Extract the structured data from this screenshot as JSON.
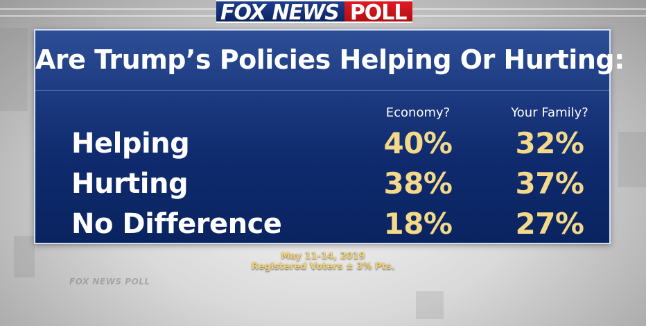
{
  "logo": {
    "brand": "FOX NEWS",
    "label": "POLL"
  },
  "watermark": {
    "small_logo": "FOX NEWS POLL"
  },
  "chart_data": {
    "type": "table",
    "title": "Are Trump’s Policies Helping Or Hurting:",
    "columns": [
      "Economy?",
      "Your Family?"
    ],
    "rows": [
      {
        "label": "Helping",
        "values": [
          "40%",
          "32%"
        ]
      },
      {
        "label": "Hurting",
        "values": [
          "38%",
          "37%"
        ]
      },
      {
        "label": "No Difference",
        "values": [
          "18%",
          "27%"
        ]
      }
    ],
    "values_numeric": [
      [
        40,
        32
      ],
      [
        38,
        37
      ],
      [
        18,
        27
      ]
    ]
  },
  "footer": {
    "date": "May 11-14, 2019",
    "sample": "Registered Voters ± 3% Pts."
  },
  "colors": {
    "panel_blue": "#1c3a80",
    "value_gold": "#f4d98a",
    "footer_gold": "#f0d070",
    "fox_red": "#e01b22"
  }
}
